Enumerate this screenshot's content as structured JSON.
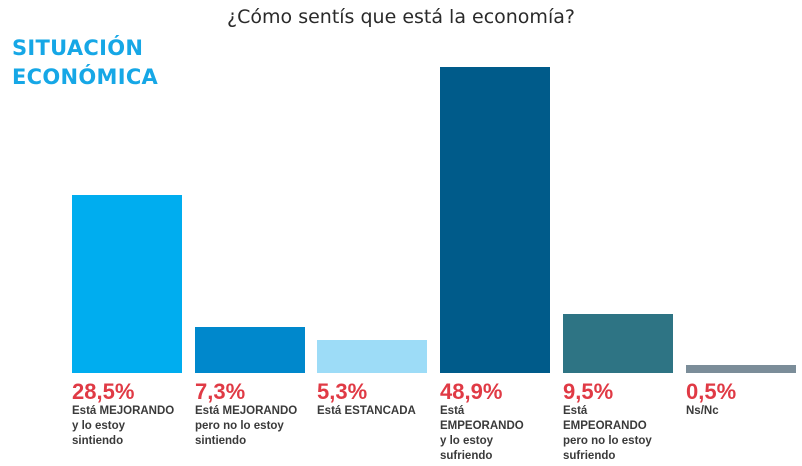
{
  "header": {
    "title": "¿Cómo sentís que está la economía?",
    "section_line1": "SITUACIÓN",
    "section_line2": "ECONÓMICA"
  },
  "chart_data": {
    "type": "bar",
    "title": "¿Cómo sentís que está la economía?",
    "categories": [
      "Está MEJORANDO y lo estoy sintiendo",
      "Está MEJORANDO pero no lo estoy sintiendo",
      "Está ESTANCADA",
      "Está EMPEORANDO y lo estoy sufriendo",
      "Está EMPEORANDO pero no lo estoy sufriendo",
      "Ns/Nc"
    ],
    "label_lines": [
      [
        "Está MEJORANDO",
        "y lo estoy",
        "sintiendo"
      ],
      [
        "Está MEJORANDO",
        "pero no lo estoy",
        "sintiendo"
      ],
      [
        "Está ESTANCADA"
      ],
      [
        "Está",
        "EMPEORANDO",
        "y lo estoy",
        "sufriendo"
      ],
      [
        "Está",
        "EMPEORANDO",
        "pero no lo estoy",
        "sufriendo"
      ],
      [
        "Ns/Nc"
      ]
    ],
    "values": [
      28.5,
      7.3,
      5.3,
      48.9,
      9.5,
      0.5
    ],
    "value_labels": [
      "28,5%",
      "7,3%",
      "5,3%",
      "48,9%",
      "9,5%",
      "0,5%"
    ],
    "colors": [
      "#00adef",
      "#0088cc",
      "#9ddcf7",
      "#005b8a",
      "#2e7484",
      "#7b8d99"
    ],
    "ylim": [
      0,
      48.9
    ],
    "grid": false,
    "legend": "none"
  }
}
